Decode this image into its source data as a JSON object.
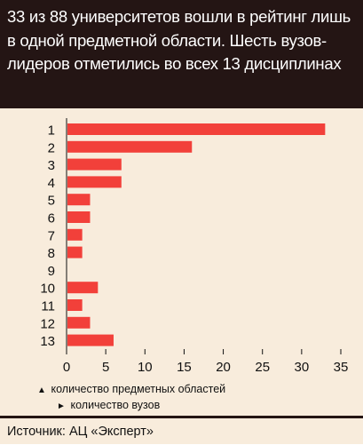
{
  "header": {
    "title": "33 из 88 университетов вошли в рейтинг лишь в одной предметной области. Шесть вузов-лидеров отметились во всех 13 дисциплинах"
  },
  "colors": {
    "header_bg": "#241514",
    "panel_bg": "#f8ecdc",
    "bar": "#f2403a"
  },
  "chart_data": {
    "type": "bar",
    "orientation": "horizontal",
    "categories": [
      "1",
      "2",
      "3",
      "4",
      "5",
      "6",
      "7",
      "8",
      "9",
      "10",
      "11",
      "12",
      "13"
    ],
    "values": [
      33,
      16,
      7,
      7,
      3,
      3,
      2,
      2,
      0,
      4,
      2,
      3,
      6
    ],
    "xlim": [
      0,
      35
    ],
    "xticks": [
      "0",
      "5",
      "10",
      "15",
      "20",
      "25",
      "30",
      "35"
    ],
    "grid": false
  },
  "legend": {
    "categories_label": "количество предметных областей",
    "values_label": "количество вузов"
  },
  "source": "Источник: АЦ «Эксперт»"
}
